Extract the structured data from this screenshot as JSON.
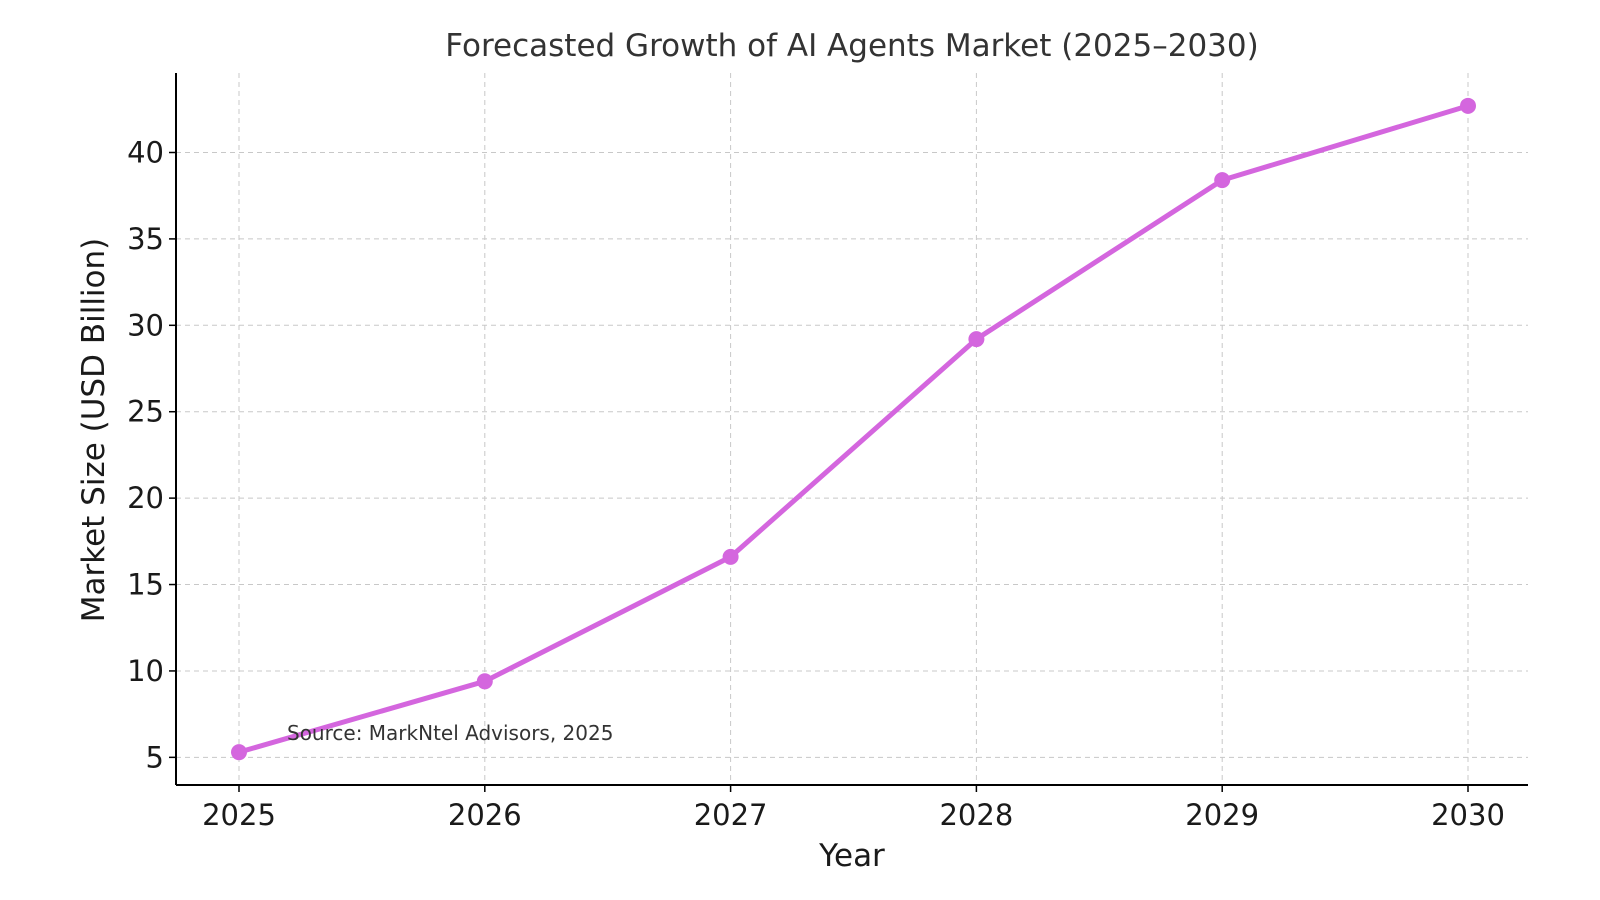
{
  "chart_data": {
    "type": "line",
    "title": "Forecasted Growth of AI Agents Market (2025–2030)",
    "xlabel": "Year",
    "ylabel": "Market Size (USD Billion)",
    "categories": [
      "2025",
      "2026",
      "2027",
      "2028",
      "2029",
      "2030"
    ],
    "series": [
      {
        "name": "AI Agents Market",
        "values": [
          5.3,
          9.4,
          16.6,
          29.2,
          38.4,
          42.7
        ]
      }
    ],
    "ylim": [
      3.4,
      44.6
    ],
    "yticks": [
      5,
      10,
      15,
      20,
      25,
      30,
      35,
      40
    ],
    "grid": true,
    "annotation": {
      "text": "Source: MarkNtel Advisors, 2025"
    },
    "colors": {
      "line": "#d466de",
      "marker": "#d466de"
    }
  }
}
